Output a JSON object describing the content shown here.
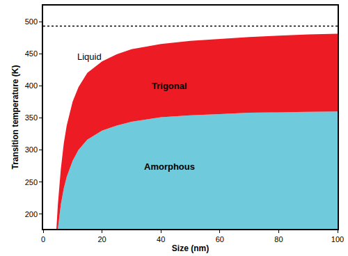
{
  "chart_data": {
    "type": "area",
    "x_label": "Size (nm)",
    "y_label": "Transition temperature (K)",
    "xlim": [
      0,
      100
    ],
    "ylim": [
      177,
      525
    ],
    "xticks": [
      0,
      20,
      40,
      60,
      80,
      100
    ],
    "yticks": [
      200,
      250,
      300,
      350,
      400,
      450,
      500
    ],
    "grid": false,
    "annotations": [
      {
        "text": "Liquid"
      }
    ],
    "hlines": [
      {
        "value": 493,
        "line_style": "dotted",
        "color": "#000000"
      }
    ],
    "series": [
      {
        "name": "Trigonal",
        "color": "#ed1c24",
        "x": [
          4.5,
          5,
          6,
          7,
          8,
          10,
          12,
          15,
          20,
          25,
          30,
          40,
          50,
          60,
          70,
          80,
          90,
          100
        ],
        "values": [
          177,
          215,
          270,
          310,
          338,
          375,
          398,
          420,
          438,
          449,
          457,
          465,
          470,
          473,
          476,
          478,
          480,
          481
        ]
      },
      {
        "name": "Amorphous",
        "color": "#6fcbdc",
        "x": [
          5,
          6,
          7,
          8,
          10,
          12,
          15,
          20,
          25,
          30,
          40,
          50,
          60,
          70,
          80,
          90,
          100
        ],
        "values": [
          177,
          215,
          240,
          258,
          283,
          300,
          316,
          330,
          338,
          344,
          351,
          354,
          356,
          358,
          359,
          359.5,
          360
        ]
      }
    ]
  }
}
